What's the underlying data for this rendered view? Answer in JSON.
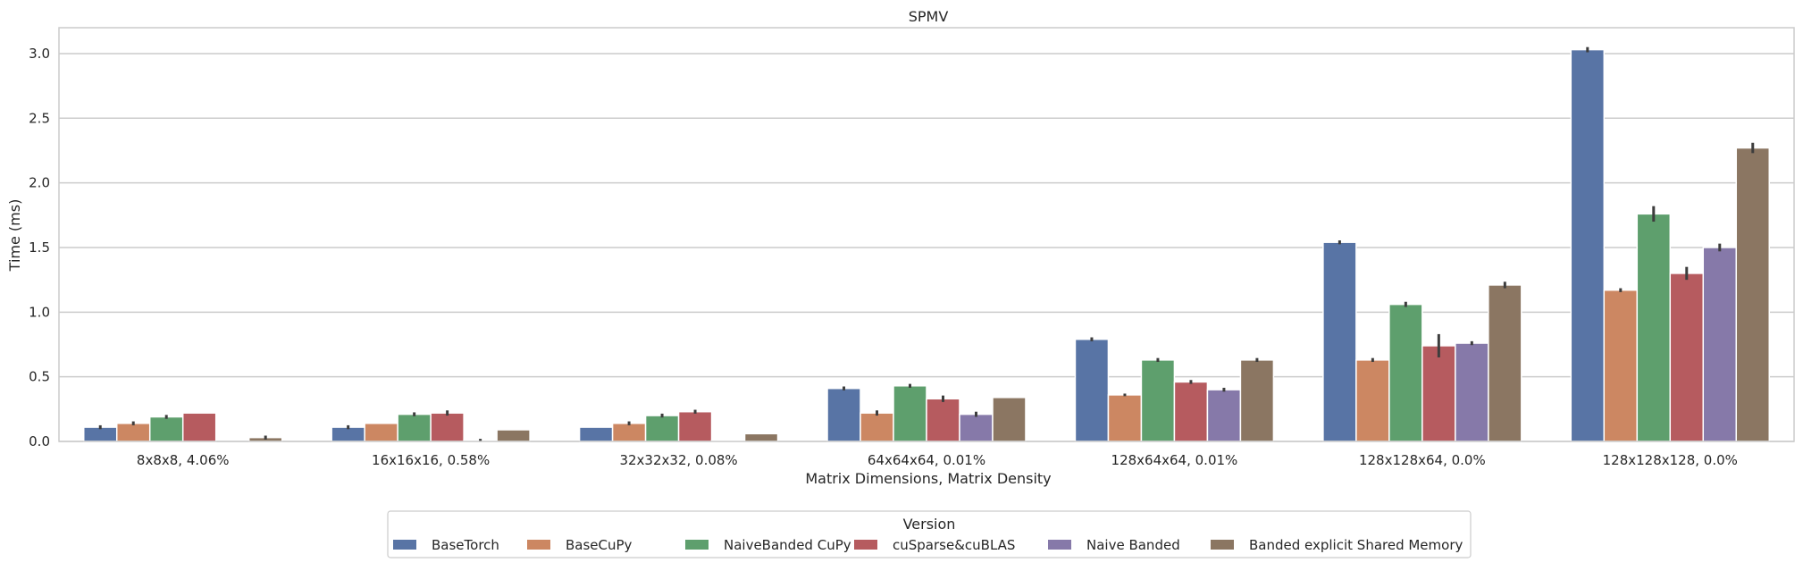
{
  "chart_data": {
    "type": "bar",
    "title": "SPMV",
    "xlabel": "Matrix Dimensions, Matrix Density",
    "ylabel": "Time (ms)",
    "ylim": [
      0,
      3.2
    ],
    "yticks": [
      0.0,
      0.5,
      1.0,
      1.5,
      2.0,
      2.5,
      3.0
    ],
    "ytick_labels": [
      "0.0",
      "0.5",
      "1.0",
      "1.5",
      "2.0",
      "2.5",
      "3.0"
    ],
    "grid": "horizontal",
    "legend_title": "Version",
    "legend_position": "bottom-center",
    "categories": [
      "8x8x8, 4.06%",
      "16x16x16, 0.58%",
      "32x32x32, 0.08%",
      "64x64x64, 0.01%",
      "128x64x64, 0.01%",
      "128x128x64, 0.0%",
      "128x128x128, 0.0%"
    ],
    "series": [
      {
        "name": "BaseTorch",
        "color": "#5874a5",
        "values": [
          0.11,
          0.11,
          0.11,
          0.41,
          0.79,
          1.54,
          3.03
        ],
        "errors": [
          0.015,
          0.015,
          0.0,
          0.015,
          0.015,
          0.015,
          0.02
        ]
      },
      {
        "name": "BaseCuPy",
        "color": "#cc8762",
        "values": [
          0.14,
          0.14,
          0.14,
          0.22,
          0.36,
          0.63,
          1.17
        ],
        "errors": [
          0.015,
          0.0,
          0.015,
          0.02,
          0.01,
          0.015,
          0.015
        ]
      },
      {
        "name": "NaiveBanded CuPy",
        "color": "#5e9f6d",
        "values": [
          0.19,
          0.21,
          0.2,
          0.43,
          0.63,
          1.06,
          1.76
        ],
        "errors": [
          0.015,
          0.015,
          0.015,
          0.015,
          0.015,
          0.02,
          0.06
        ]
      },
      {
        "name": "cuSparse&cuBLAS",
        "color": "#b65b5f",
        "values": [
          0.22,
          0.22,
          0.23,
          0.33,
          0.46,
          0.74,
          1.3
        ],
        "errors": [
          0.0,
          0.02,
          0.015,
          0.025,
          0.015,
          0.09,
          0.05
        ]
      },
      {
        "name": "Naive Banded",
        "color": "#8679a9",
        "values": [
          0.0,
          0.01,
          0.01,
          0.21,
          0.4,
          0.76,
          1.5
        ],
        "errors": [
          0.0,
          0.01,
          0.0,
          0.02,
          0.015,
          0.015,
          0.03
        ]
      },
      {
        "name": "Banded explicit Shared Memory",
        "color": "#8b7662",
        "values": [
          0.03,
          0.09,
          0.06,
          0.34,
          0.63,
          1.21,
          2.27
        ],
        "errors": [
          0.015,
          0.0,
          0.0,
          0.0,
          0.015,
          0.025,
          0.04
        ]
      }
    ]
  }
}
